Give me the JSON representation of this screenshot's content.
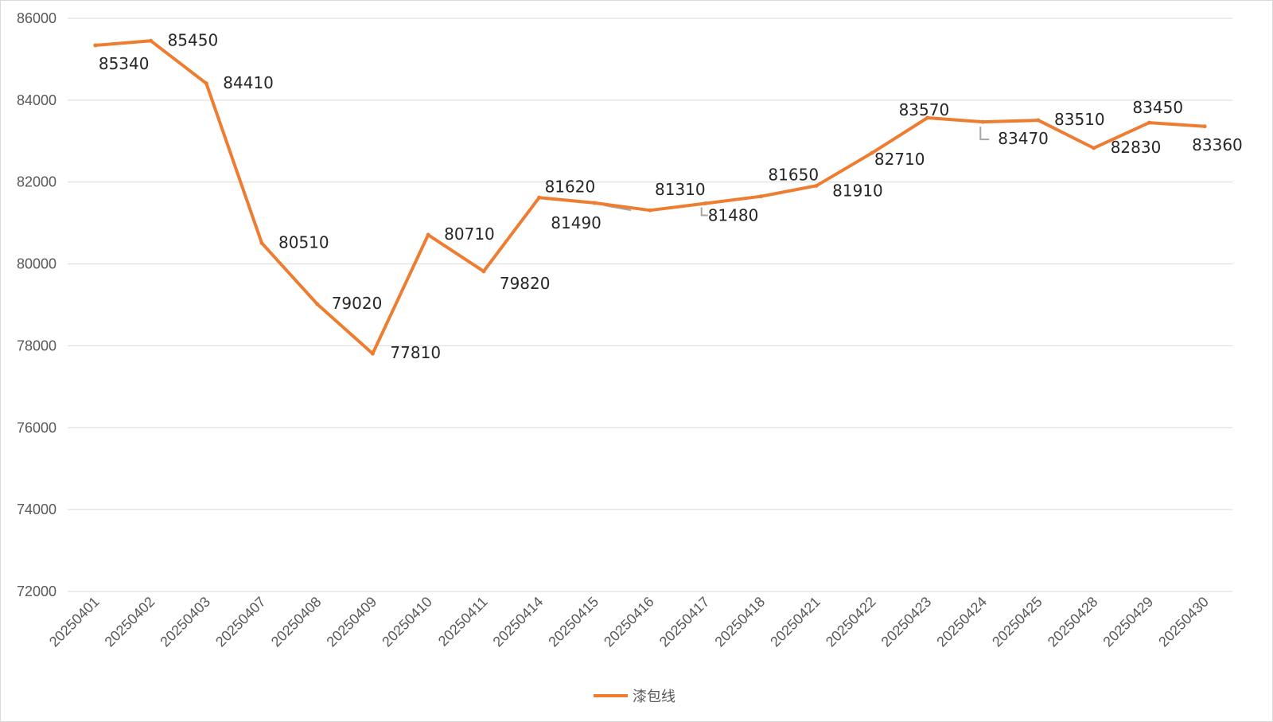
{
  "chart_data": {
    "type": "line",
    "title": "",
    "xlabel": "",
    "ylabel": "",
    "categories": [
      "20250401",
      "20250402",
      "20250403",
      "20250407",
      "20250408",
      "20250409",
      "20250410",
      "20250411",
      "20250414",
      "20250415",
      "20250416",
      "20250417",
      "20250418",
      "20250421",
      "20250422",
      "20250423",
      "20250424",
      "20250425",
      "20250428",
      "20250429",
      "20250430"
    ],
    "series": [
      {
        "name": "漆包线",
        "color": "#ED7D31",
        "values": [
          85340,
          85450,
          84410,
          80510,
          79020,
          77810,
          80710,
          79820,
          81620,
          81490,
          81310,
          81480,
          81650,
          81910,
          82710,
          83570,
          83470,
          83510,
          82830,
          83450,
          83360
        ]
      }
    ],
    "data_labels": [
      "85340",
      "85450",
      "84410",
      "80510",
      "79020",
      "77810",
      "80710",
      "79820",
      "81620",
      "81490",
      "81310",
      "81480",
      "81650",
      "81910",
      "82710",
      "83570",
      "83470",
      "83510",
      "82830",
      "83450",
      "83360"
    ],
    "ylim": [
      72000,
      86000
    ],
    "y_ticks": [
      72000,
      74000,
      76000,
      78000,
      80000,
      82000,
      84000,
      86000
    ],
    "y_tick_labels": [
      "72000",
      "74000",
      "76000",
      "78000",
      "80000",
      "82000",
      "84000",
      "86000"
    ],
    "grid": true,
    "legend": {
      "position": "bottom",
      "entries": [
        "漆包线"
      ]
    },
    "colors": {
      "line": "#ED7D31",
      "grid": "#d9d9d9",
      "axis": "#d9d9d9",
      "leader": "#a6a6a6"
    }
  }
}
